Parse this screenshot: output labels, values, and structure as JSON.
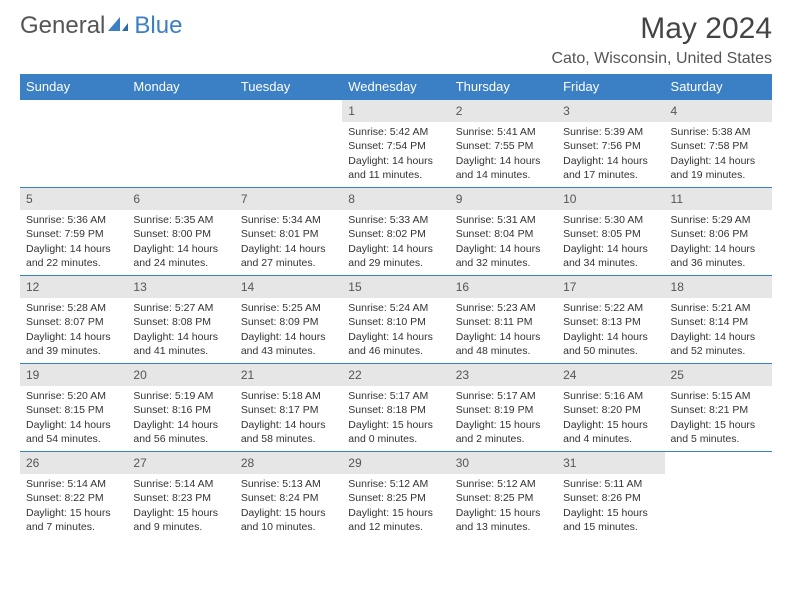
{
  "brand": {
    "part1": "General",
    "part2": "Blue"
  },
  "title": "May 2024",
  "location": "Cato, Wisconsin, United States",
  "colors": {
    "header_bg": "#3b7fc4",
    "daynum_bg": "#e6e6e6",
    "rule": "#3b7fc4",
    "text": "#333333"
  },
  "weekdays": [
    "Sunday",
    "Monday",
    "Tuesday",
    "Wednesday",
    "Thursday",
    "Friday",
    "Saturday"
  ],
  "weeks": [
    [
      {
        "n": "",
        "sr": "",
        "ss": "",
        "dl": ""
      },
      {
        "n": "",
        "sr": "",
        "ss": "",
        "dl": ""
      },
      {
        "n": "",
        "sr": "",
        "ss": "",
        "dl": ""
      },
      {
        "n": "1",
        "sr": "Sunrise: 5:42 AM",
        "ss": "Sunset: 7:54 PM",
        "dl": "Daylight: 14 hours and 11 minutes."
      },
      {
        "n": "2",
        "sr": "Sunrise: 5:41 AM",
        "ss": "Sunset: 7:55 PM",
        "dl": "Daylight: 14 hours and 14 minutes."
      },
      {
        "n": "3",
        "sr": "Sunrise: 5:39 AM",
        "ss": "Sunset: 7:56 PM",
        "dl": "Daylight: 14 hours and 17 minutes."
      },
      {
        "n": "4",
        "sr": "Sunrise: 5:38 AM",
        "ss": "Sunset: 7:58 PM",
        "dl": "Daylight: 14 hours and 19 minutes."
      }
    ],
    [
      {
        "n": "5",
        "sr": "Sunrise: 5:36 AM",
        "ss": "Sunset: 7:59 PM",
        "dl": "Daylight: 14 hours and 22 minutes."
      },
      {
        "n": "6",
        "sr": "Sunrise: 5:35 AM",
        "ss": "Sunset: 8:00 PM",
        "dl": "Daylight: 14 hours and 24 minutes."
      },
      {
        "n": "7",
        "sr": "Sunrise: 5:34 AM",
        "ss": "Sunset: 8:01 PM",
        "dl": "Daylight: 14 hours and 27 minutes."
      },
      {
        "n": "8",
        "sr": "Sunrise: 5:33 AM",
        "ss": "Sunset: 8:02 PM",
        "dl": "Daylight: 14 hours and 29 minutes."
      },
      {
        "n": "9",
        "sr": "Sunrise: 5:31 AM",
        "ss": "Sunset: 8:04 PM",
        "dl": "Daylight: 14 hours and 32 minutes."
      },
      {
        "n": "10",
        "sr": "Sunrise: 5:30 AM",
        "ss": "Sunset: 8:05 PM",
        "dl": "Daylight: 14 hours and 34 minutes."
      },
      {
        "n": "11",
        "sr": "Sunrise: 5:29 AM",
        "ss": "Sunset: 8:06 PM",
        "dl": "Daylight: 14 hours and 36 minutes."
      }
    ],
    [
      {
        "n": "12",
        "sr": "Sunrise: 5:28 AM",
        "ss": "Sunset: 8:07 PM",
        "dl": "Daylight: 14 hours and 39 minutes."
      },
      {
        "n": "13",
        "sr": "Sunrise: 5:27 AM",
        "ss": "Sunset: 8:08 PM",
        "dl": "Daylight: 14 hours and 41 minutes."
      },
      {
        "n": "14",
        "sr": "Sunrise: 5:25 AM",
        "ss": "Sunset: 8:09 PM",
        "dl": "Daylight: 14 hours and 43 minutes."
      },
      {
        "n": "15",
        "sr": "Sunrise: 5:24 AM",
        "ss": "Sunset: 8:10 PM",
        "dl": "Daylight: 14 hours and 46 minutes."
      },
      {
        "n": "16",
        "sr": "Sunrise: 5:23 AM",
        "ss": "Sunset: 8:11 PM",
        "dl": "Daylight: 14 hours and 48 minutes."
      },
      {
        "n": "17",
        "sr": "Sunrise: 5:22 AM",
        "ss": "Sunset: 8:13 PM",
        "dl": "Daylight: 14 hours and 50 minutes."
      },
      {
        "n": "18",
        "sr": "Sunrise: 5:21 AM",
        "ss": "Sunset: 8:14 PM",
        "dl": "Daylight: 14 hours and 52 minutes."
      }
    ],
    [
      {
        "n": "19",
        "sr": "Sunrise: 5:20 AM",
        "ss": "Sunset: 8:15 PM",
        "dl": "Daylight: 14 hours and 54 minutes."
      },
      {
        "n": "20",
        "sr": "Sunrise: 5:19 AM",
        "ss": "Sunset: 8:16 PM",
        "dl": "Daylight: 14 hours and 56 minutes."
      },
      {
        "n": "21",
        "sr": "Sunrise: 5:18 AM",
        "ss": "Sunset: 8:17 PM",
        "dl": "Daylight: 14 hours and 58 minutes."
      },
      {
        "n": "22",
        "sr": "Sunrise: 5:17 AM",
        "ss": "Sunset: 8:18 PM",
        "dl": "Daylight: 15 hours and 0 minutes."
      },
      {
        "n": "23",
        "sr": "Sunrise: 5:17 AM",
        "ss": "Sunset: 8:19 PM",
        "dl": "Daylight: 15 hours and 2 minutes."
      },
      {
        "n": "24",
        "sr": "Sunrise: 5:16 AM",
        "ss": "Sunset: 8:20 PM",
        "dl": "Daylight: 15 hours and 4 minutes."
      },
      {
        "n": "25",
        "sr": "Sunrise: 5:15 AM",
        "ss": "Sunset: 8:21 PM",
        "dl": "Daylight: 15 hours and 5 minutes."
      }
    ],
    [
      {
        "n": "26",
        "sr": "Sunrise: 5:14 AM",
        "ss": "Sunset: 8:22 PM",
        "dl": "Daylight: 15 hours and 7 minutes."
      },
      {
        "n": "27",
        "sr": "Sunrise: 5:14 AM",
        "ss": "Sunset: 8:23 PM",
        "dl": "Daylight: 15 hours and 9 minutes."
      },
      {
        "n": "28",
        "sr": "Sunrise: 5:13 AM",
        "ss": "Sunset: 8:24 PM",
        "dl": "Daylight: 15 hours and 10 minutes."
      },
      {
        "n": "29",
        "sr": "Sunrise: 5:12 AM",
        "ss": "Sunset: 8:25 PM",
        "dl": "Daylight: 15 hours and 12 minutes."
      },
      {
        "n": "30",
        "sr": "Sunrise: 5:12 AM",
        "ss": "Sunset: 8:25 PM",
        "dl": "Daylight: 15 hours and 13 minutes."
      },
      {
        "n": "31",
        "sr": "Sunrise: 5:11 AM",
        "ss": "Sunset: 8:26 PM",
        "dl": "Daylight: 15 hours and 15 minutes."
      },
      {
        "n": "",
        "sr": "",
        "ss": "",
        "dl": ""
      }
    ]
  ]
}
